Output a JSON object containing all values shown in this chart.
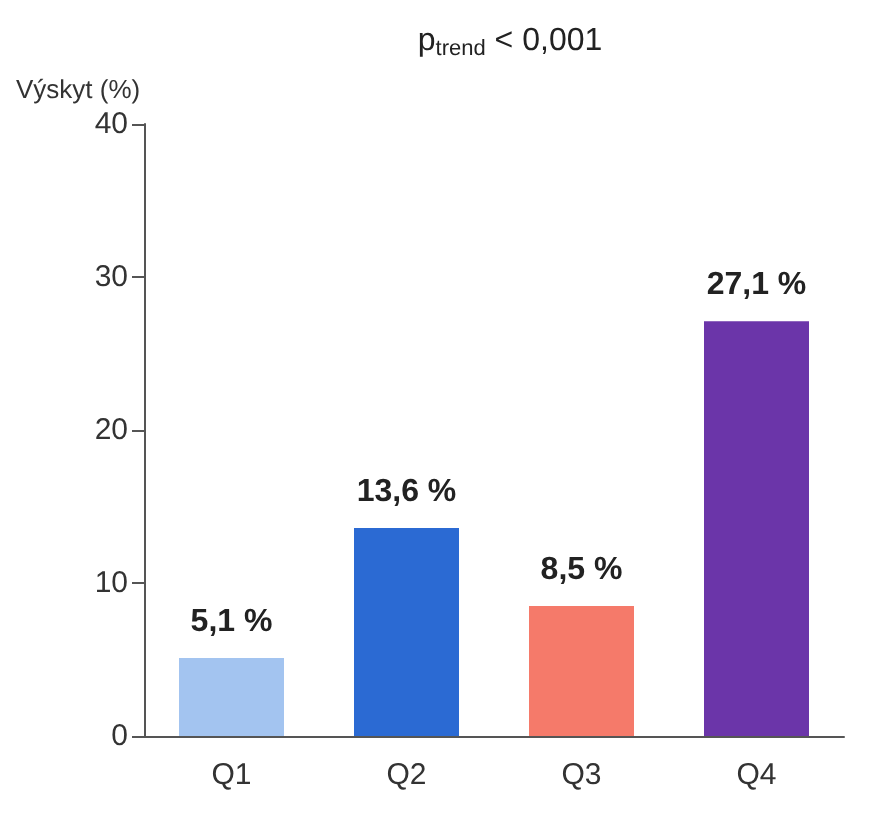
{
  "chart_data": {
    "type": "bar",
    "title": "p$_{trend}$ < 0,001",
    "ylabel": "Výskyt (%)",
    "categories": [
      "Q1",
      "Q2",
      "Q3",
      "Q4"
    ],
    "values": [
      5.1,
      13.6,
      8.5,
      27.1
    ],
    "colors": [
      "#a3c4f0",
      "#2b6ad3",
      "#f57a6a",
      "#6b35a9"
    ],
    "value_labels": [
      "5,1 %",
      "13,6 %",
      "8,5 %",
      "27,1 %"
    ],
    "ylim": [
      0,
      40
    ],
    "yticks": [
      0,
      10,
      20,
      30,
      40
    ],
    "grid": false
  }
}
